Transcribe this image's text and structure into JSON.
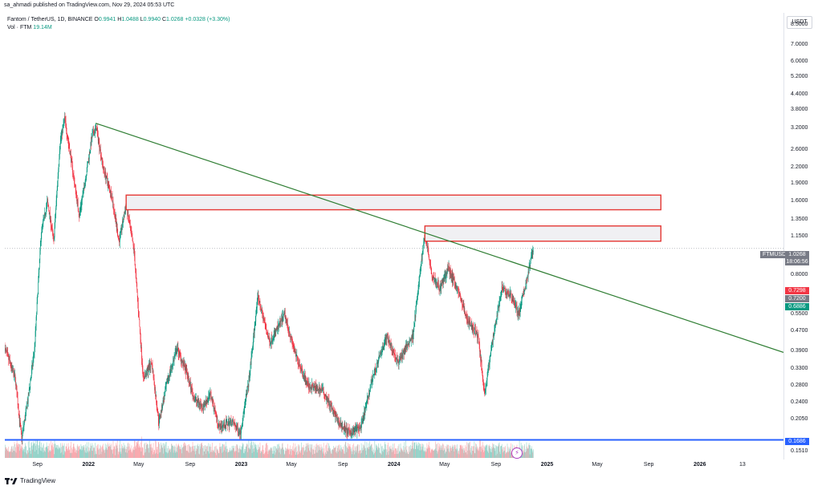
{
  "publisher": "sa_ahmadi published on TradingView.com, Nov 29, 2024 05:53 UTC",
  "legend": {
    "symbol": "Fantom / TetherUS, 1D, BINANCE",
    "open_key": "O",
    "open": "0.9941",
    "high_key": "H",
    "high": "1.0488",
    "low_key": "L",
    "low": "0.9940",
    "close_key": "C",
    "close": "1.0268",
    "change": "+0.0328 (+3.30%)",
    "volume_label": "Vol · FTM",
    "volume": "19.14M"
  },
  "currency": "USDT",
  "price_tags": {
    "symbol_tag": "FTMUSDT",
    "last_price": "1.0268",
    "countdown": "18:06:56",
    "tag_red": "0.7298",
    "tag_gray": "0.7200",
    "tag_green": "0.6886",
    "tag_blue": "0.1686"
  },
  "footer": "TradingView",
  "colors": {
    "up": "#089981",
    "down": "#f23645",
    "trendline": "#2e7d32",
    "zone_border": "#e53935",
    "zone_fill": "#f0f0f3",
    "support": "#2962ff",
    "last_price_tag": "#787b86"
  },
  "chart_data": {
    "type": "candlestick",
    "symbol": "FTMUSDT",
    "timeframe": "1D",
    "y_scale": "log",
    "ylim": [
      0.14,
      9.5
    ],
    "y_ticks": [
      "8.5000",
      "7.0000",
      "6.0000",
      "5.2000",
      "4.4000",
      "3.8000",
      "3.2000",
      "2.6000",
      "2.2000",
      "1.9000",
      "1.6000",
      "1.3500",
      "1.1500",
      "0.8000",
      "0.5500",
      "0.4700",
      "0.3900",
      "0.3300",
      "0.2800",
      "0.2400",
      "0.2050",
      "0.1510"
    ],
    "y_tick_values": [
      8.5,
      7.0,
      6.0,
      5.2,
      4.4,
      3.8,
      3.2,
      2.6,
      2.2,
      1.9,
      1.6,
      1.35,
      1.15,
      0.8,
      0.55,
      0.47,
      0.39,
      0.33,
      0.28,
      0.24,
      0.205,
      0.151
    ],
    "x_ticks": [
      {
        "label": "Sep",
        "date": "2021-09-01"
      },
      {
        "label": "2022",
        "date": "2022-01-01",
        "bold": true
      },
      {
        "label": "May",
        "date": "2022-05-01"
      },
      {
        "label": "Sep",
        "date": "2022-09-01"
      },
      {
        "label": "2023",
        "date": "2023-01-01",
        "bold": true
      },
      {
        "label": "May",
        "date": "2023-05-01"
      },
      {
        "label": "Sep",
        "date": "2023-09-01"
      },
      {
        "label": "2024",
        "date": "2024-01-01",
        "bold": true
      },
      {
        "label": "May",
        "date": "2024-05-01"
      },
      {
        "label": "Sep",
        "date": "2024-09-01"
      },
      {
        "label": "2025",
        "date": "2025-01-01",
        "bold": true
      },
      {
        "label": "May",
        "date": "2025-05-01"
      },
      {
        "label": "Sep",
        "date": "2025-09-01"
      },
      {
        "label": "2026",
        "date": "2026-01-01",
        "bold": true
      },
      {
        "label": "13",
        "date": "2026-04-13"
      }
    ],
    "xlim": [
      "2021-06-15",
      "2026-07-20"
    ],
    "price_path": [
      {
        "date": "2021-06-15",
        "price": 0.4
      },
      {
        "date": "2021-07-10",
        "price": 0.3
      },
      {
        "date": "2021-07-25",
        "price": 0.17
      },
      {
        "date": "2021-08-10",
        "price": 0.25
      },
      {
        "date": "2021-08-25",
        "price": 0.4
      },
      {
        "date": "2021-09-10",
        "price": 1.2
      },
      {
        "date": "2021-09-25",
        "price": 1.6
      },
      {
        "date": "2021-10-10",
        "price": 1.1
      },
      {
        "date": "2021-10-25",
        "price": 2.8
      },
      {
        "date": "2021-11-05",
        "price": 3.5
      },
      {
        "date": "2021-11-20",
        "price": 2.4
      },
      {
        "date": "2021-12-10",
        "price": 1.4
      },
      {
        "date": "2021-12-25",
        "price": 2.0
      },
      {
        "date": "2022-01-10",
        "price": 3.0
      },
      {
        "date": "2022-01-20",
        "price": 3.2
      },
      {
        "date": "2022-02-05",
        "price": 2.2
      },
      {
        "date": "2022-02-25",
        "price": 1.7
      },
      {
        "date": "2022-03-15",
        "price": 1.1
      },
      {
        "date": "2022-04-01",
        "price": 1.55
      },
      {
        "date": "2022-04-20",
        "price": 1.0
      },
      {
        "date": "2022-05-12",
        "price": 0.3
      },
      {
        "date": "2022-06-01",
        "price": 0.35
      },
      {
        "date": "2022-06-18",
        "price": 0.2
      },
      {
        "date": "2022-07-10",
        "price": 0.3
      },
      {
        "date": "2022-08-01",
        "price": 0.4
      },
      {
        "date": "2022-08-20",
        "price": 0.33
      },
      {
        "date": "2022-09-10",
        "price": 0.25
      },
      {
        "date": "2022-10-01",
        "price": 0.23
      },
      {
        "date": "2022-10-20",
        "price": 0.26
      },
      {
        "date": "2022-11-09",
        "price": 0.19
      },
      {
        "date": "2022-12-10",
        "price": 0.2
      },
      {
        "date": "2022-12-30",
        "price": 0.18
      },
      {
        "date": "2023-01-20",
        "price": 0.3
      },
      {
        "date": "2023-02-05",
        "price": 0.55
      },
      {
        "date": "2023-02-10",
        "price": 0.65
      },
      {
        "date": "2023-03-10",
        "price": 0.42
      },
      {
        "date": "2023-04-15",
        "price": 0.55
      },
      {
        "date": "2023-05-10",
        "price": 0.38
      },
      {
        "date": "2023-06-10",
        "price": 0.28
      },
      {
        "date": "2023-07-15",
        "price": 0.27
      },
      {
        "date": "2023-08-20",
        "price": 0.2
      },
      {
        "date": "2023-09-15",
        "price": 0.18
      },
      {
        "date": "2023-10-15",
        "price": 0.19
      },
      {
        "date": "2023-11-10",
        "price": 0.3
      },
      {
        "date": "2023-12-15",
        "price": 0.45
      },
      {
        "date": "2024-01-10",
        "price": 0.35
      },
      {
        "date": "2024-02-15",
        "price": 0.45
      },
      {
        "date": "2024-03-15",
        "price": 1.2
      },
      {
        "date": "2024-04-01",
        "price": 0.8
      },
      {
        "date": "2024-04-20",
        "price": 0.7
      },
      {
        "date": "2024-05-10",
        "price": 0.85
      },
      {
        "date": "2024-06-01",
        "price": 0.7
      },
      {
        "date": "2024-06-25",
        "price": 0.52
      },
      {
        "date": "2024-07-20",
        "price": 0.45
      },
      {
        "date": "2024-08-05",
        "price": 0.26
      },
      {
        "date": "2024-08-25",
        "price": 0.45
      },
      {
        "date": "2024-09-15",
        "price": 0.7
      },
      {
        "date": "2024-10-10",
        "price": 0.65
      },
      {
        "date": "2024-10-25",
        "price": 0.55
      },
      {
        "date": "2024-11-10",
        "price": 0.72
      },
      {
        "date": "2024-11-22",
        "price": 0.9
      },
      {
        "date": "2024-11-29",
        "price": 1.0268
      }
    ],
    "trendline": {
      "start": {
        "date": "2022-01-18",
        "price": 3.35
      },
      "end": {
        "date": "2026-07-20",
        "price": 0.385
      }
    },
    "zones": [
      {
        "start": "2022-04-01",
        "end": "2025-09-30",
        "low": 1.48,
        "high": 1.7
      },
      {
        "start": "2024-03-15",
        "end": "2025-09-30",
        "low": 1.1,
        "high": 1.27
      }
    ],
    "support_line": 0.1686,
    "last_price": 1.0268
  }
}
